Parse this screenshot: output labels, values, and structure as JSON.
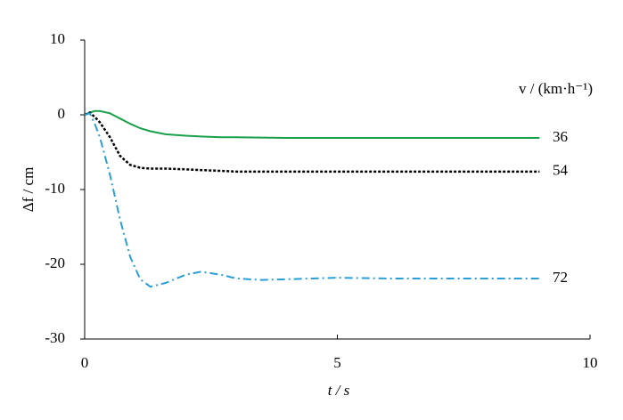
{
  "chart_data": {
    "type": "line",
    "x_label": "t / s",
    "y_label": "Δf / cm",
    "legend_title": "v / (km·h⁻¹)",
    "x": [
      0,
      0.1,
      0.2,
      0.3,
      0.5,
      0.7,
      0.9,
      1.1,
      1.3,
      1.6,
      2,
      2.3,
      2.7,
      3,
      3.5,
      4,
      5,
      6,
      7,
      8,
      9
    ],
    "series": [
      {
        "name": "36",
        "color": "#1aa04a",
        "dash": "solid",
        "values": [
          0,
          0.3,
          0.5,
          0.5,
          0.2,
          -0.5,
          -1.2,
          -1.8,
          -2.2,
          -2.6,
          -2.8,
          -2.9,
          -3.0,
          -3.0,
          -3.05,
          -3.1,
          -3.1,
          -3.1,
          -3.1,
          -3.1,
          -3.1
        ]
      },
      {
        "name": "54",
        "color": "#000000",
        "dash": "dot",
        "values": [
          0,
          0.3,
          -0.3,
          -1,
          -3,
          -5.5,
          -6.7,
          -7.1,
          -7.2,
          -7.2,
          -7.3,
          -7.4,
          -7.5,
          -7.6,
          -7.6,
          -7.6,
          -7.6,
          -7.6,
          -7.6,
          -7.6,
          -7.6
        ]
      },
      {
        "name": "72",
        "color": "#2a9fd6",
        "dash": "dashdot",
        "values": [
          0,
          0.2,
          -1.2,
          -3,
          -8,
          -14,
          -19,
          -22,
          -23,
          -22.5,
          -21.4,
          -21,
          -21.4,
          -21.9,
          -22.1,
          -22,
          -21.8,
          -21.9,
          -21.9,
          -21.9,
          -21.9
        ]
      }
    ],
    "xlim": [
      0,
      10
    ],
    "xticks": [
      0,
      5,
      10
    ],
    "ylim": [
      -30,
      10
    ],
    "yticks": [
      -30,
      -20,
      -10,
      0,
      10
    ]
  }
}
